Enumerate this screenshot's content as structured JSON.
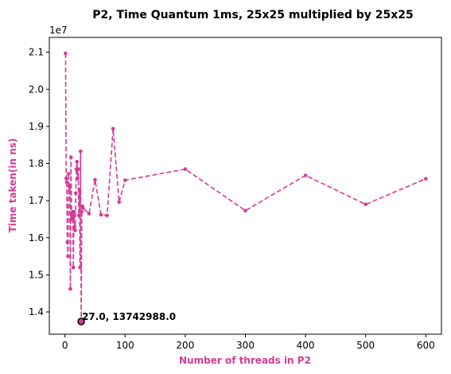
{
  "chart_data": {
    "type": "line",
    "title": "P2, Time Quantum 1ms, 25x25 multiplied by 25x25",
    "xlabel": "Number of threads in P2",
    "ylabel": "Time taken(in ns)",
    "y_offset_label": "1e7",
    "xlim": [
      -26,
      626
    ],
    "ylim": [
      13400000,
      21400000
    ],
    "xticks": [
      0,
      100,
      200,
      300,
      400,
      500,
      600
    ],
    "yticks": [
      14000000,
      15000000,
      16000000,
      17000000,
      18000000,
      19000000,
      20000000,
      21000000
    ],
    "ytick_labels": [
      "1.4",
      "1.5",
      "1.6",
      "1.7",
      "1.8",
      "1.9",
      "2.0",
      "2.1"
    ],
    "series_color": "#d63a96",
    "label_color": "#d63a96",
    "grid": false,
    "series": [
      {
        "x": [
          1,
          2,
          3,
          4,
          5,
          6,
          7,
          8,
          9,
          10,
          11,
          12,
          13,
          14,
          15,
          16,
          17,
          18,
          19,
          20,
          21,
          22,
          23,
          24,
          25,
          26,
          27,
          28,
          29,
          30,
          40,
          50,
          60,
          70,
          80,
          90,
          100,
          200,
          300,
          400,
          500,
          600
        ],
        "y": [
          20970000,
          17600000,
          17500000,
          15880000,
          15500000,
          17720000,
          17400000,
          17350000,
          14620000,
          18170000,
          16500000,
          16550000,
          16700000,
          15200000,
          16700000,
          16300000,
          16200000,
          17200000,
          17850000,
          18050000,
          17600000,
          17850000,
          16600000,
          17300000,
          15200000,
          18330000,
          13742988,
          16700000,
          16850000,
          16800000,
          16650000,
          17560000,
          16620000,
          16600000,
          18940000,
          16960000,
          17550000,
          17850000,
          16730000,
          17680000,
          16900000,
          17590000
        ]
      }
    ],
    "highlight": {
      "x": 27.0,
      "y": 13742988.0,
      "label": "27.0, 13742988.0"
    }
  }
}
